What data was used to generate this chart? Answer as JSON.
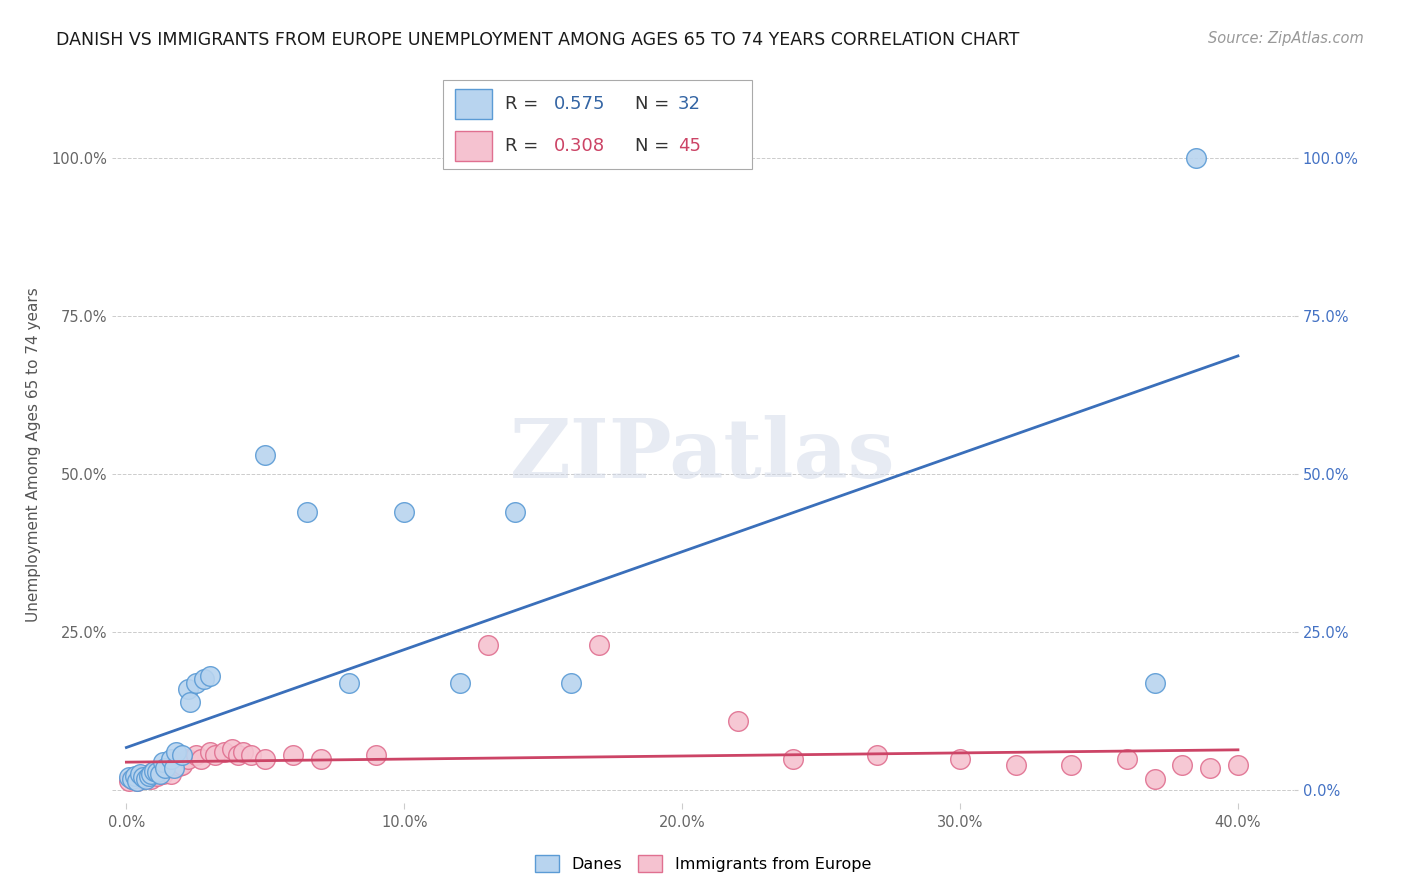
{
  "title": "DANISH VS IMMIGRANTS FROM EUROPE UNEMPLOYMENT AMONG AGES 65 TO 74 YEARS CORRELATION CHART",
  "source": "Source: ZipAtlas.com",
  "ylabel": "Unemployment Among Ages 65 to 74 years",
  "x_tick_labels": [
    "0.0%",
    "10.0%",
    "20.0%",
    "30.0%",
    "40.0%"
  ],
  "x_tick_values": [
    0.0,
    0.1,
    0.2,
    0.3,
    0.4
  ],
  "y_tick_labels_left": [
    "",
    "25.0%",
    "50.0%",
    "75.0%",
    "100.0%"
  ],
  "y_tick_labels_right": [
    "0.0%",
    "25.0%",
    "50.0%",
    "75.0%",
    "100.0%"
  ],
  "y_tick_values": [
    0.0,
    0.25,
    0.5,
    0.75,
    1.0
  ],
  "xlim": [
    -0.005,
    0.42
  ],
  "ylim": [
    -0.02,
    1.08
  ],
  "danes_color": "#b8d4ef",
  "danes_edge_color": "#5b9bd5",
  "immigrants_color": "#f5c2d0",
  "immigrants_edge_color": "#e07090",
  "danes_line_color": "#3a6fba",
  "immigrants_line_color": "#cc4466",
  "danes_R": 0.575,
  "danes_N": 32,
  "immigrants_R": 0.308,
  "immigrants_N": 45,
  "watermark": "ZIPatlas",
  "danes_x": [
    0.001,
    0.002,
    0.003,
    0.004,
    0.005,
    0.006,
    0.007,
    0.008,
    0.009,
    0.01,
    0.011,
    0.012,
    0.013,
    0.014,
    0.016,
    0.017,
    0.018,
    0.02,
    0.022,
    0.023,
    0.025,
    0.028,
    0.03,
    0.05,
    0.065,
    0.08,
    0.1,
    0.12,
    0.14,
    0.16,
    0.37,
    0.385
  ],
  "danes_y": [
    0.02,
    0.018,
    0.022,
    0.015,
    0.025,
    0.02,
    0.018,
    0.022,
    0.025,
    0.03,
    0.028,
    0.025,
    0.045,
    0.035,
    0.05,
    0.035,
    0.06,
    0.055,
    0.16,
    0.14,
    0.17,
    0.175,
    0.18,
    0.53,
    0.44,
    0.17,
    0.44,
    0.17,
    0.44,
    0.17,
    0.17,
    1.0
  ],
  "immigrants_x": [
    0.001,
    0.002,
    0.003,
    0.004,
    0.005,
    0.006,
    0.007,
    0.008,
    0.009,
    0.01,
    0.011,
    0.012,
    0.013,
    0.015,
    0.016,
    0.018,
    0.019,
    0.02,
    0.022,
    0.025,
    0.027,
    0.03,
    0.032,
    0.035,
    0.038,
    0.04,
    0.042,
    0.045,
    0.05,
    0.06,
    0.07,
    0.09,
    0.13,
    0.17,
    0.22,
    0.24,
    0.27,
    0.3,
    0.32,
    0.34,
    0.36,
    0.37,
    0.38,
    0.39,
    0.4
  ],
  "immigrants_y": [
    0.015,
    0.018,
    0.02,
    0.015,
    0.022,
    0.018,
    0.02,
    0.025,
    0.018,
    0.025,
    0.022,
    0.03,
    0.025,
    0.035,
    0.025,
    0.045,
    0.038,
    0.04,
    0.05,
    0.055,
    0.05,
    0.06,
    0.055,
    0.06,
    0.065,
    0.055,
    0.06,
    0.055,
    0.05,
    0.055,
    0.05,
    0.055,
    0.23,
    0.23,
    0.11,
    0.05,
    0.055,
    0.05,
    0.04,
    0.04,
    0.05,
    0.018,
    0.04,
    0.035,
    0.04
  ]
}
